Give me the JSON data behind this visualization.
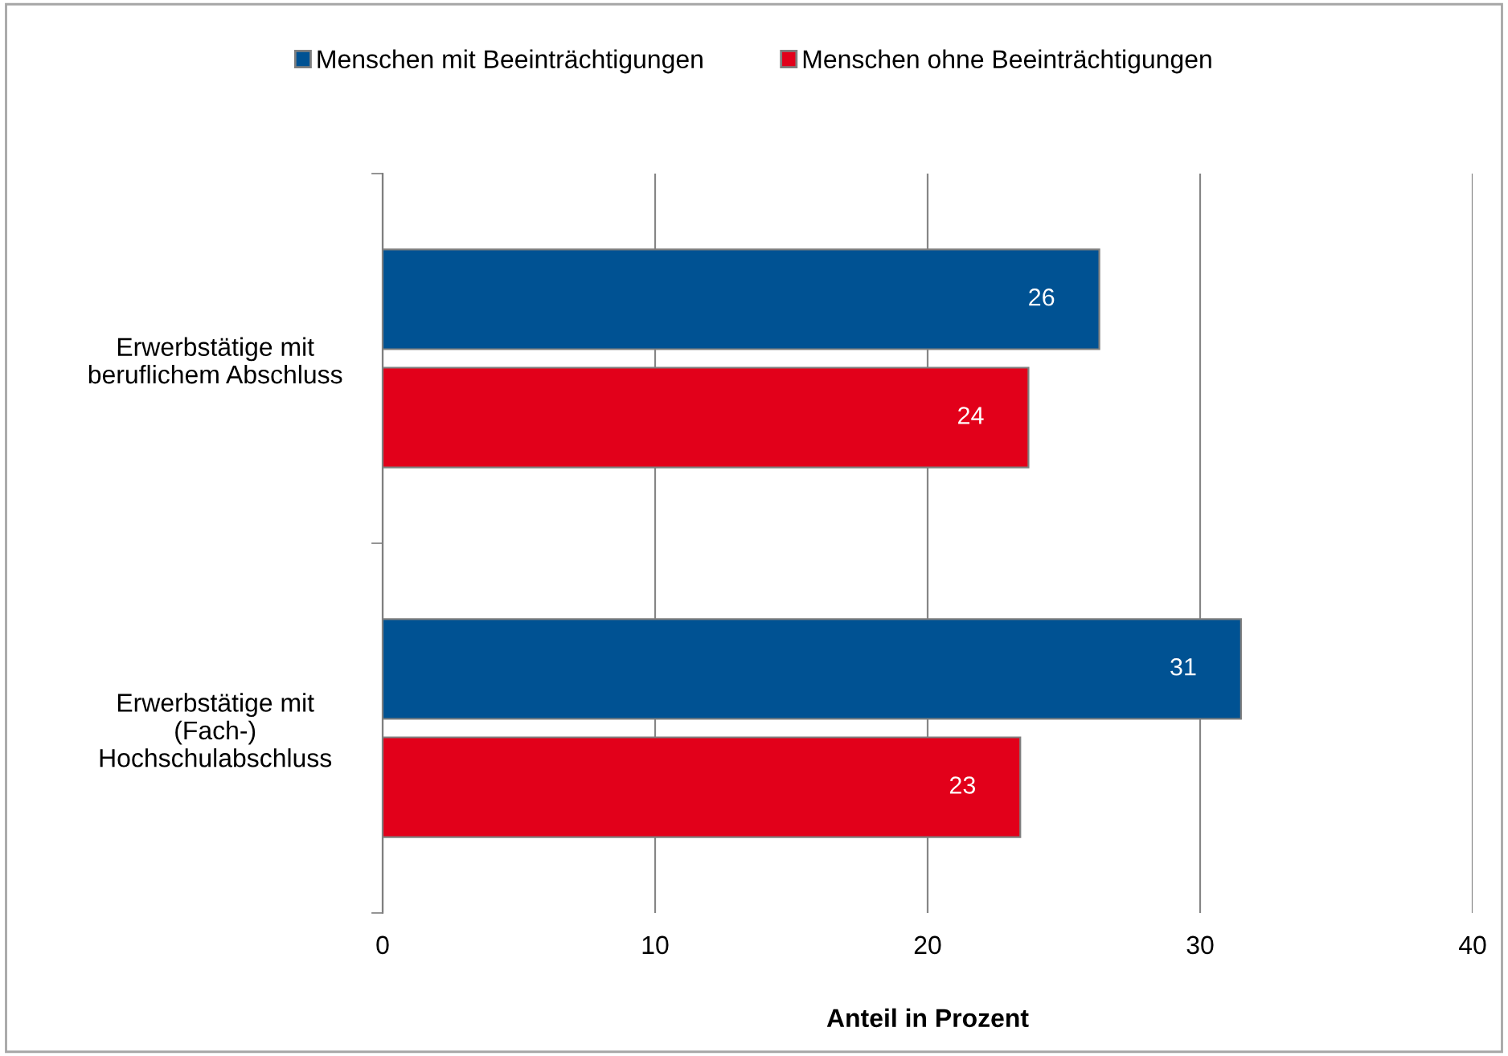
{
  "chart_data": {
    "type": "bar",
    "orientation": "horizontal",
    "xlabel": "Anteil in Prozent",
    "categories": [
      "Erwerbstätige mit\nberuflichem Abschluss",
      "Erwerbstätige mit\n(Fach-)\nHochschulabschluss"
    ],
    "series": [
      {
        "name": "Menschen mit Beeinträchtigungen",
        "color": "#005293",
        "values": [
          26.3,
          31.5
        ],
        "value_labels": [
          "26",
          "31"
        ]
      },
      {
        "name": "Menschen ohne Beeinträchtigungen",
        "color": "#e2001a",
        "values": [
          23.7,
          23.4
        ],
        "value_labels": [
          "24",
          "23"
        ]
      }
    ],
    "xlim": [
      0,
      40
    ],
    "xticks": [
      0,
      10,
      20,
      30,
      40
    ],
    "grid": "x",
    "legend": "top"
  }
}
